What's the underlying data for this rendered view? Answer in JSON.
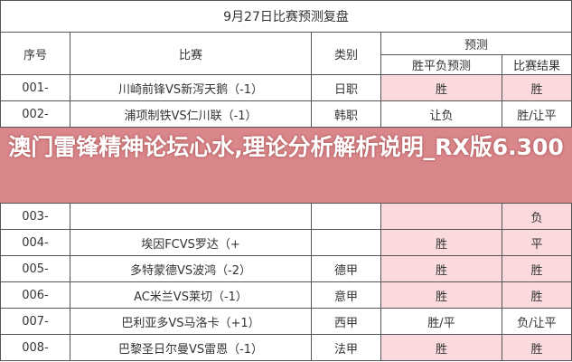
{
  "title": "9月27日比赛预测复盘",
  "headers": {
    "seq": "序号",
    "match": "比赛",
    "category": "类别",
    "prediction_group": "预测",
    "prediction": "胜平负预测",
    "result": "比赛结果"
  },
  "rows": [
    {
      "seq": "001-",
      "match": "川崎前锋VS新泻天鹅（-1）",
      "category": "日职",
      "prediction": "胜",
      "result": "胜",
      "highlight": true
    },
    {
      "seq": "002-",
      "match": "浦项制铁VS仁川联（-1）",
      "category": "韩职",
      "prediction": "让负",
      "result": "胜/让平",
      "highlight": false
    },
    {
      "seq": "003-",
      "match": "",
      "category": "",
      "prediction": "",
      "result": "负",
      "highlight": true
    },
    {
      "seq": "004-",
      "match": "埃因FCVS罗达（+",
      "category": "",
      "prediction": "胜",
      "result": "平",
      "highlight": true
    },
    {
      "seq": "005-",
      "match": "多特蒙德VS波鸿（-2）",
      "category": "德甲",
      "prediction": "胜",
      "result": "胜",
      "highlight": true
    },
    {
      "seq": "006-",
      "match": "AC米兰VS莱切（-1）",
      "category": "意甲",
      "prediction": "胜",
      "result": "胜",
      "highlight": true
    },
    {
      "seq": "007-",
      "match": "巴利亚多VS马洛卡（+1）",
      "category": "西甲",
      "prediction": "胜/平",
      "result": "负/让平",
      "highlight": false
    },
    {
      "seq": "008-",
      "match": "巴黎圣日尔曼VS雷恩（-1）",
      "category": "法甲",
      "prediction": "胜",
      "result": "胜",
      "highlight": true
    }
  ],
  "overlay_text": "澳门雷锋精神论坛心水,理论分析解析说明_RX版6.300",
  "colors": {
    "highlight": "#fadadd",
    "overlay": "#cd5f64"
  }
}
